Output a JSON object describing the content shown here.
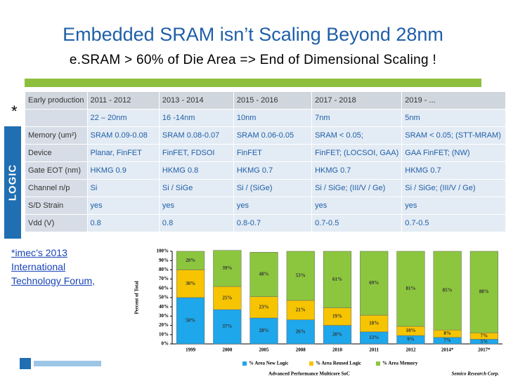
{
  "title": "Embedded SRAM isn’t Scaling Beyond 28nm",
  "subtitle": "e.SRAM > 60% of Die Area => End of Dimensional Scaling !",
  "table": {
    "side_label": "LOGIC",
    "header": [
      "Early production",
      "2011 - 2012",
      "2013 - 2014",
      "2015 - 2016",
      "2017 - 2018",
      "2019 - ..."
    ],
    "rows": [
      [
        null,
        "22 – 20nm",
        "16 -14nm",
        "10nm",
        "7nm",
        "5nm"
      ],
      [
        "Memory (um²)",
        "SRAM 0.09-0.08",
        "SRAM 0.08-0.07",
        "SRAM 0.06-0.05",
        "SRAM < 0.05;",
        "SRAM < 0.05; (STT-MRAM)"
      ],
      [
        "Device",
        "Planar, FinFET",
        "FinFET, FDSOI",
        "FinFET",
        "FinFET; (LOCSOI, GAA)",
        "GAA FinFET; (NW)"
      ],
      [
        "Gate EOT (nm)",
        "HKMG 0.9",
        "HKMG 0.8",
        "HKMG 0.7",
        "HKMG 0.7",
        "HKMG 0.7"
      ],
      [
        "Channel n/p",
        "Si",
        "Si / SiGe",
        "Si / (SiGe)",
        "Si / SiGe; (III/V / Ge)",
        "Si / SiGe; (III/V / Ge)"
      ],
      [
        "S/D Strain",
        "yes",
        "yes",
        "yes",
        "yes",
        "yes"
      ],
      [
        "Vdd (V)",
        "0.8",
        "0.8",
        "0.8-0.7",
        "0.7-0.5",
        "0.7-0.5"
      ]
    ]
  },
  "asterisk": "*",
  "footnote": "*imec’s 2013 International Technology Forum,",
  "chart_data": {
    "type": "stacked-bar",
    "y_label": "Percent of Total",
    "x_label": "Advanced Performance Multicore SoC",
    "source": "Semico Research Corp.",
    "categories": [
      "1999",
      "2000",
      "2005",
      "2008",
      "2010",
      "2011",
      "2012",
      "2014*",
      "2017*"
    ],
    "series": [
      {
        "name": "% Area New Logic",
        "color": "#1ea7ea",
        "values": [
          50,
          37,
          28,
          26,
          20,
          13,
          9,
          7,
          5
        ],
        "value_labels": [
          "50%",
          "37%",
          "28%",
          "26%",
          "20%",
          "13%",
          "9%",
          "7%",
          "5%"
        ]
      },
      {
        "name": "% Area Reused Logic",
        "color": "#f6c400",
        "values": [
          30,
          25,
          23,
          21,
          19,
          18,
          10,
          8,
          7
        ],
        "value_labels": [
          "30%",
          "25%",
          "23%",
          "21%",
          "19%",
          "18%",
          "10%",
          "8%",
          "7%"
        ]
      },
      {
        "name": "% Area Memory",
        "color": "#8cc63f",
        "values": [
          20,
          39,
          48,
          53,
          61,
          69,
          81,
          85,
          88
        ],
        "value_labels": [
          "20%",
          "39%",
          "48%",
          "53%",
          "61%",
          "69%",
          "81%",
          "85%",
          "88%"
        ]
      }
    ],
    "ylim": [
      0,
      100
    ],
    "yticks": [
      {
        "value": 0,
        "label": "0%"
      },
      {
        "value": 10,
        "label": "10%"
      },
      {
        "value": 20,
        "label": "20%"
      },
      {
        "value": 30,
        "label": "30%"
      },
      {
        "value": 40,
        "label": "40%"
      },
      {
        "value": 50,
        "label": "50%"
      },
      {
        "value": 60,
        "label": "60%"
      },
      {
        "value": 70,
        "label": "70%"
      },
      {
        "value": 80,
        "label": "80%"
      },
      {
        "value": 90,
        "label": "90%"
      },
      {
        "value": 100,
        "label": "100%"
      }
    ]
  }
}
